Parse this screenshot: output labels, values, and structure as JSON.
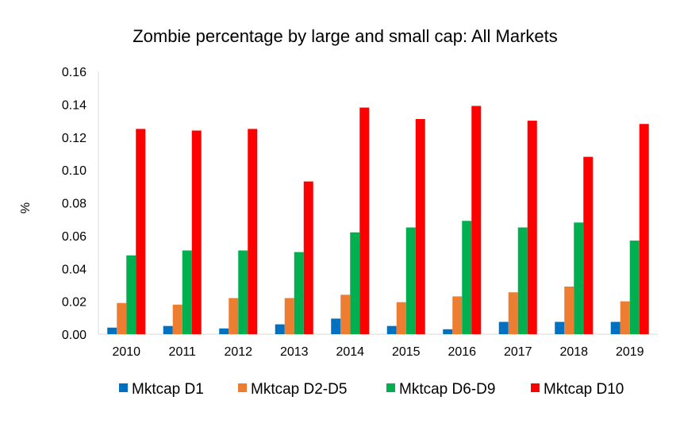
{
  "chart_data": {
    "type": "bar",
    "title": "Zombie percentage by large and small cap: All Markets",
    "xlabel": "",
    "ylabel": "%",
    "ylim": [
      0,
      0.16
    ],
    "yticks": [
      "0.00",
      "0.02",
      "0.04",
      "0.06",
      "0.08",
      "0.10",
      "0.12",
      "0.14",
      "0.16"
    ],
    "grid": false,
    "legend_position": "bottom",
    "categories": [
      "2010",
      "2011",
      "2012",
      "2013",
      "2014",
      "2015",
      "2016",
      "2017",
      "2018",
      "2019"
    ],
    "series": [
      {
        "name": "Mktcap D1",
        "color": "#0070C0",
        "values": [
          0.004,
          0.005,
          0.0035,
          0.006,
          0.0095,
          0.005,
          0.003,
          0.0075,
          0.0075,
          0.0075
        ]
      },
      {
        "name": "Mktcap D2-D5",
        "color": "#ED7D31",
        "values": [
          0.019,
          0.018,
          0.022,
          0.022,
          0.024,
          0.0195,
          0.023,
          0.0255,
          0.029,
          0.02
        ]
      },
      {
        "name": "Mktcap D6-D9",
        "color": "#00B050",
        "values": [
          0.048,
          0.051,
          0.051,
          0.05,
          0.062,
          0.065,
          0.069,
          0.065,
          0.068,
          0.057
        ]
      },
      {
        "name": "Mktcap D10",
        "color": "#FF0000",
        "values": [
          0.125,
          0.124,
          0.125,
          0.093,
          0.138,
          0.131,
          0.139,
          0.13,
          0.108,
          0.128
        ]
      }
    ]
  }
}
